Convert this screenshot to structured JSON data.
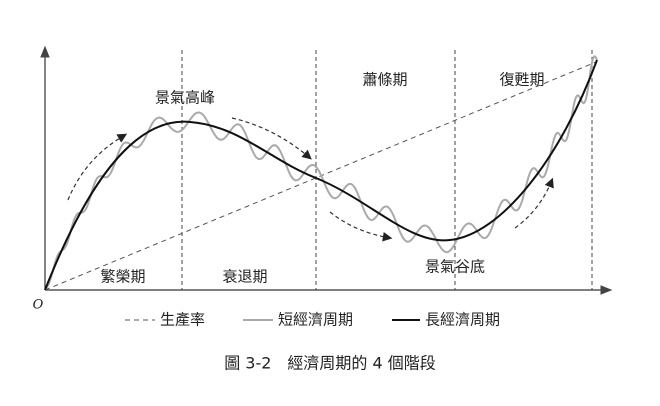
{
  "diagram": {
    "origin": "O",
    "phases": [
      "景氣高峰",
      "蕭條期",
      "復甦期",
      "繁榮期",
      "衰退期",
      "景氣谷底"
    ],
    "legend": [
      "生產率",
      "短經濟周期",
      "長經濟周期"
    ],
    "caption": "圖 3-2　經濟周期的 4 個階段"
  }
}
